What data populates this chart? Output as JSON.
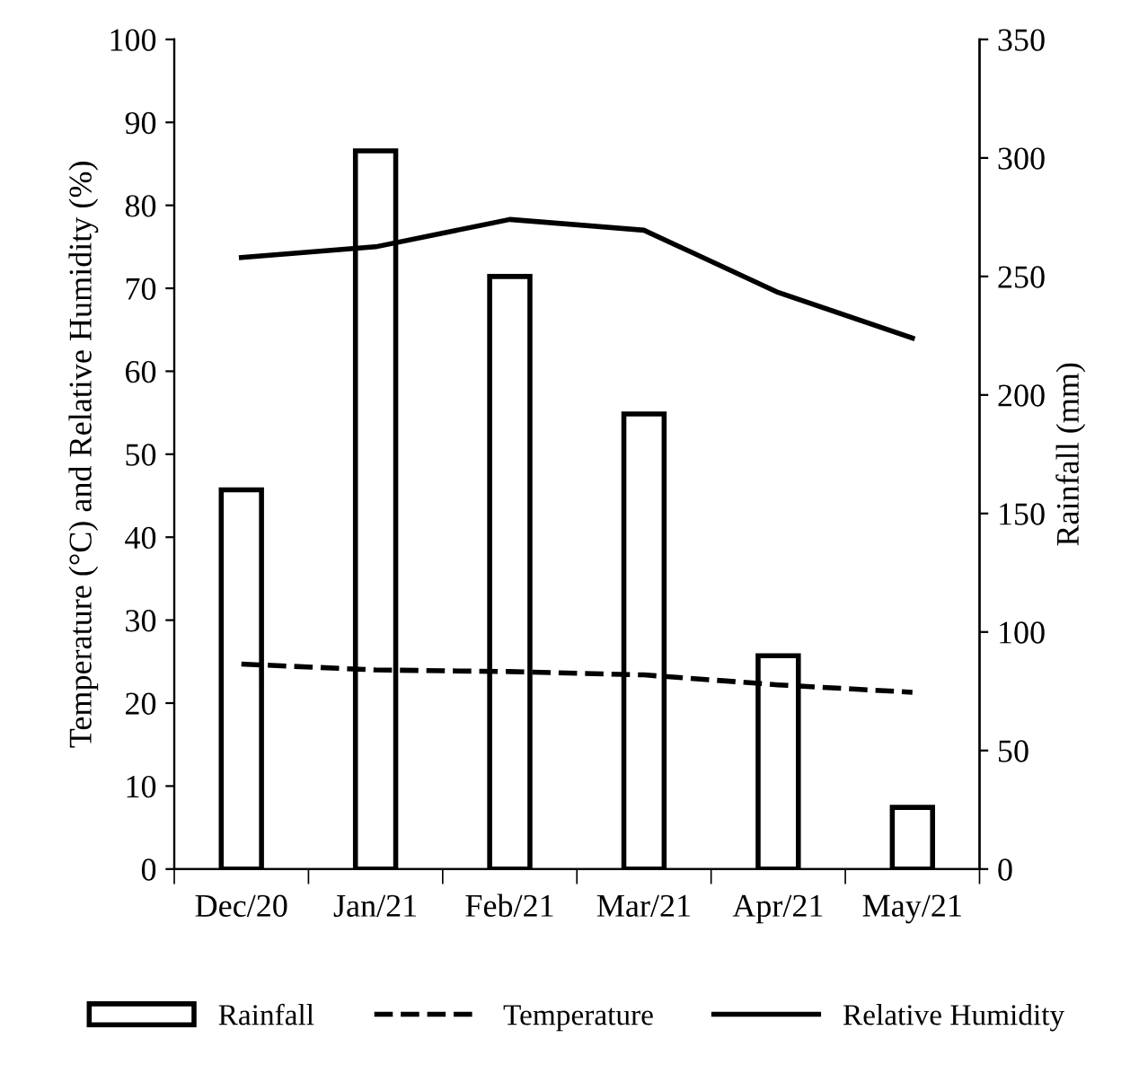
{
  "chart_data": {
    "type": "bar",
    "ylabel": "Temperature (°C) and Relative Humidity (%)",
    "y2label": "Rainfall (mm)",
    "categories": [
      "Dec/20",
      "Jan/21",
      "Feb/21",
      "Mar/21",
      "Apr/21",
      "May/21"
    ],
    "series": [
      {
        "name": "Rainfall",
        "axis": "y2",
        "color": "#000000",
        "values": [
          160,
          303,
          250,
          192,
          90,
          26
        ]
      },
      {
        "name": "Temperature",
        "type": "line",
        "line_style": "dashed",
        "color": "#000000",
        "values": [
          24.7,
          24.0,
          23.8,
          23.4,
          22.2,
          21.3
        ]
      },
      {
        "name": "Relative Humidity",
        "type": "line",
        "line_style": "solid",
        "color": "#000000",
        "values": [
          73.7,
          75.0,
          78.3,
          77.0,
          69.5,
          64.0
        ]
      }
    ],
    "ylim": [
      0,
      100
    ],
    "yticks": [
      0,
      10,
      20,
      30,
      40,
      50,
      60,
      70,
      80,
      90,
      100
    ],
    "y2lim": [
      0,
      350
    ],
    "y2ticks": [
      0,
      50,
      100,
      150,
      200,
      250,
      300,
      350
    ],
    "grid": false,
    "legend": "bottom",
    "marker": "none"
  }
}
